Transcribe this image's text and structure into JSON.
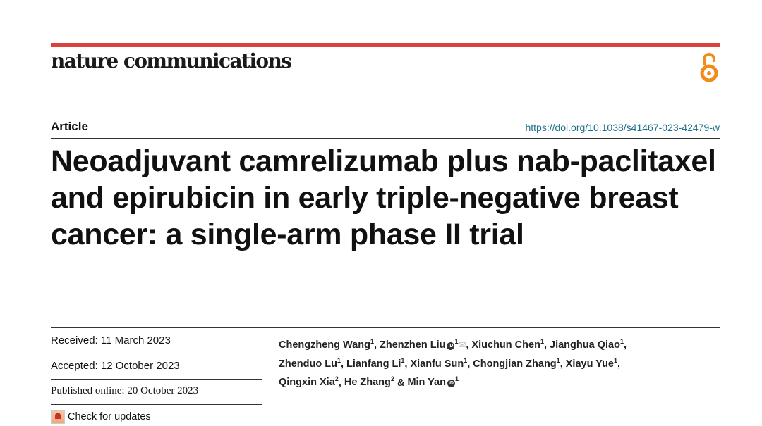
{
  "journal": {
    "name": "nature communications",
    "brand_color": "#d9423a",
    "open_access_icon": "open-access-icon",
    "open_access_color": "#f08c1a"
  },
  "article": {
    "type": "Article",
    "doi": "https://doi.org/10.1038/s41467-023-42479-w",
    "title": "Neoadjuvant camrelizumab plus nab-paclitaxel and epirubicin in early triple-negative breast cancer: a single-arm phase II trial",
    "received": "Received: 11 March 2023",
    "accepted": "Accepted: 12 October 2023",
    "published": "Published online: 20 October 2023",
    "check_updates": "Check for updates",
    "authors": [
      {
        "name": "Chengzheng Wang",
        "aff": "1"
      },
      {
        "name": "Zhenzhen Liu",
        "aff": "1",
        "orcid": true,
        "corresponding": true
      },
      {
        "name": "Xiuchun Chen",
        "aff": "1"
      },
      {
        "name": "Jianghua Qiao",
        "aff": "1"
      },
      {
        "name": "Zhenduo Lu",
        "aff": "1"
      },
      {
        "name": "Lianfang Li",
        "aff": "1"
      },
      {
        "name": "Xianfu Sun",
        "aff": "1"
      },
      {
        "name": "Chongjian Zhang",
        "aff": "1"
      },
      {
        "name": "Xiayu Yue",
        "aff": "1"
      },
      {
        "name": "Qingxin Xia",
        "aff": "2"
      },
      {
        "name": "He Zhang",
        "aff": "2"
      },
      {
        "name": "Min Yan",
        "aff": "1",
        "orcid": true
      }
    ]
  }
}
